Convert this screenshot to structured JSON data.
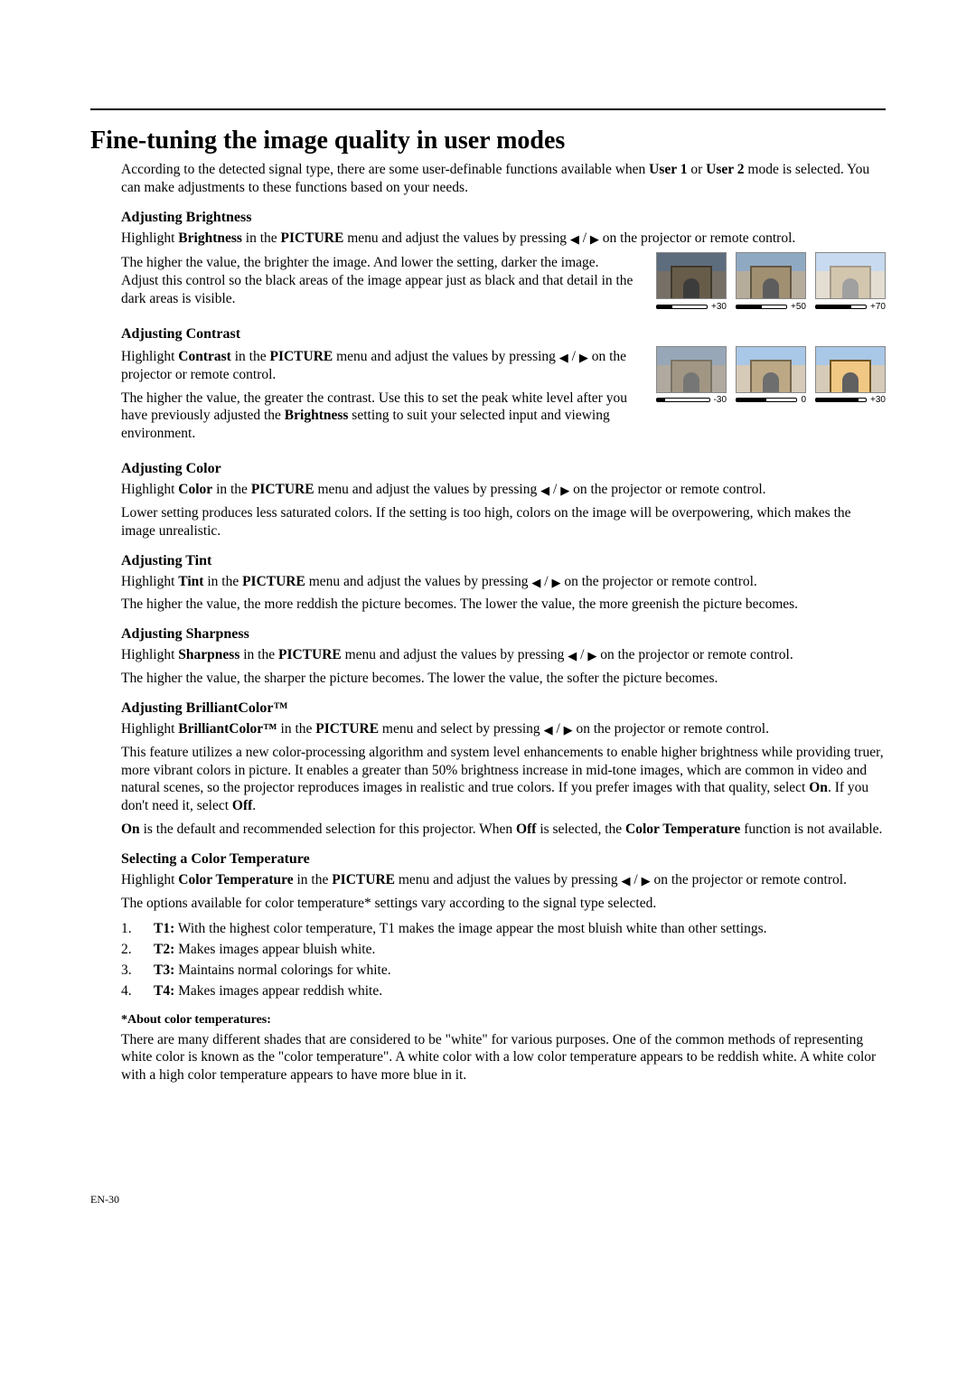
{
  "page": {
    "title": "Fine-tuning the image quality in user modes",
    "intro_html": "According to the detected signal type, there are some user-definable functions available when <b>User 1</b> or <b>User 2</b> mode is selected. You can make adjustments to these functions based on your needs.",
    "page_number": "EN-30"
  },
  "glyphs": {
    "left": "◀",
    "right": "▶",
    "slash": " / "
  },
  "brightness": {
    "heading": "Adjusting Brightness",
    "p1_pre": "Highlight <b>Brightness</b> in the <b>PICTURE</b> menu and adjust the values by pressing ",
    "p1_post": " on the projector or remote control.",
    "p2": "The higher the value, the brighter the image. And lower the setting, darker the image. Adjust this control so the black areas of the image appear just as black and that detail in the dark areas is visible.",
    "thumbs": [
      {
        "label": "+30",
        "fill_pct": 30,
        "veil": "veil-dark-strong"
      },
      {
        "label": "+50",
        "fill_pct": 50,
        "veil": "veil-dark-mild"
      },
      {
        "label": "+70",
        "fill_pct": 70,
        "veil": "veil-light"
      }
    ]
  },
  "contrast": {
    "heading": "Adjusting Contrast",
    "p1_pre": "Highlight <b>Contrast</b> in the <b>PICTURE</b> menu and adjust the values by pressing ",
    "p1_post": " on the projector or remote control.",
    "p2_html": "The higher the value, the greater the contrast. Use this to set the peak white level after you have previously adjusted the <b>Brightness</b> setting to suit your selected input and viewing environment.",
    "thumbs": [
      {
        "label": "-30",
        "fill_pct": 15,
        "cls": "lowc"
      },
      {
        "label": "0",
        "fill_pct": 50,
        "cls": ""
      },
      {
        "label": "+30",
        "fill_pct": 85,
        "cls": "highc"
      }
    ]
  },
  "color": {
    "heading": "Adjusting Color",
    "p1_pre": "Highlight <b>Color</b> in the <b>PICTURE</b> menu and adjust the values by pressing ",
    "p1_post": " on the projector or remote control.",
    "p2": "Lower setting produces less saturated colors. If the setting is too high, colors on the image will be overpowering, which makes the image unrealistic."
  },
  "tint": {
    "heading": "Adjusting Tint",
    "p1_pre": "Highlight <b>Tint</b> in the <b>PICTURE</b> menu and adjust the values by pressing ",
    "p1_post": " on the projector or remote control.",
    "p2": "The higher the value, the more reddish the picture becomes. The lower the value, the more greenish the picture becomes."
  },
  "sharpness": {
    "heading": "Adjusting Sharpness",
    "p1_pre": "Highlight <b>Sharpness</b> in the <b>PICTURE</b> menu and adjust the values by pressing ",
    "p1_post": " on the projector or remote control.",
    "p2": "The higher the value, the sharper the picture becomes. The lower the value, the softer the picture becomes."
  },
  "brilliant": {
    "heading": "Adjusting BrilliantColor™",
    "p1_pre": "Highlight <b>BrilliantColor™</b> in the <b>PICTURE</b> menu and select by pressing ",
    "p1_post": " on the projector or remote control.",
    "p2_html": "This feature utilizes a new color-processing algorithm and system level enhancements to enable higher brightness while providing truer, more vibrant colors in picture. It enables a greater than 50% brightness increase in mid-tone images, which are common in video and natural scenes, so the projector reproduces images in realistic and true colors. If you prefer images with that quality, select <b>On</b>. If you don't need it, select <b>Off</b>.",
    "p3_html": "<b>On</b> is the default and recommended selection for this projector. When <b>Off</b> is selected, the <b>Color Temperature</b> function is not available."
  },
  "ctemp": {
    "heading": "Selecting a Color Temperature",
    "p1_pre": "Highlight <b>Color Temperature</b> in the <b>PICTURE</b> menu and adjust the values by pressing ",
    "p1_post": " on the projector or remote control.",
    "p2": "The options available for color temperature* settings vary according to the signal type selected.",
    "items": [
      {
        "n": "1.",
        "label": "T1:",
        "text": " With the highest color temperature, T1 makes the image appear the most bluish white than other settings."
      },
      {
        "n": "2.",
        "label": "T2:",
        "text": " Makes images appear bluish white."
      },
      {
        "n": "3.",
        "label": "T3:",
        "text": " Maintains normal colorings for white."
      },
      {
        "n": "4.",
        "label": "T4:",
        "text": " Makes images appear reddish white."
      }
    ],
    "note_heading": "*About color temperatures:",
    "note_body": "There are many different shades that are considered to be \"white\" for various purposes. One of the common methods of representing white color is known as the \"color temperature\". A white color with a low color temperature appears to be reddish white. A white color with a high color temperature appears to have more blue in it."
  }
}
